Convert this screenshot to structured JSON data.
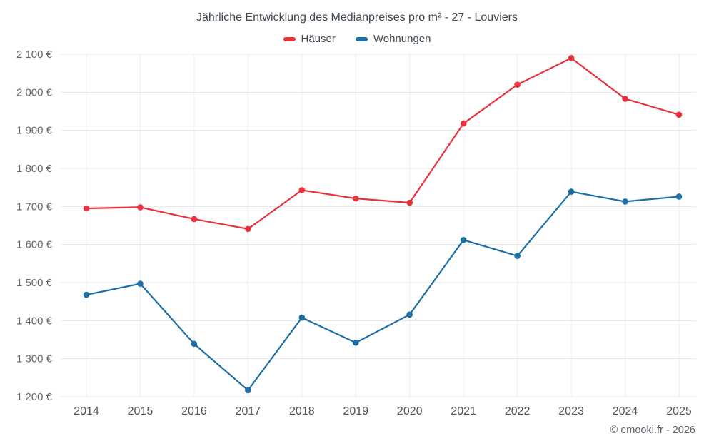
{
  "title": "Jährliche Entwicklung des Medianpreises pro m² - 27 - Louviers",
  "footer": "© emooki.fr - 2026",
  "chart_data": {
    "type": "line",
    "title": "Jährliche Entwicklung des Medianpreises pro m² - 27 - Louviers",
    "categories": [
      "2014",
      "2015",
      "2016",
      "2017",
      "2018",
      "2019",
      "2020",
      "2021",
      "2022",
      "2023",
      "2024",
      "2025"
    ],
    "series": [
      {
        "name": "Häuser",
        "color": "#e8323e",
        "values": [
          1695,
          1698,
          1667,
          1641,
          1743,
          1721,
          1710,
          1918,
          2020,
          2090,
          1983,
          1941
        ]
      },
      {
        "name": "Wohnungen",
        "color": "#1c6ea4",
        "values": [
          1468,
          1497,
          1339,
          1217,
          1408,
          1342,
          1416,
          1612,
          1570,
          1739,
          1713,
          1726
        ]
      }
    ],
    "ylim": [
      1200,
      2100
    ],
    "ytick_step": 100,
    "ytick_labels": [
      "1 200 €",
      "1 300 €",
      "1 400 €",
      "1 500 €",
      "1 600 €",
      "1 700 €",
      "1 800 €",
      "1 900 €",
      "2 000 €",
      "2 100 €"
    ],
    "grid": true,
    "legend_position": "top"
  }
}
